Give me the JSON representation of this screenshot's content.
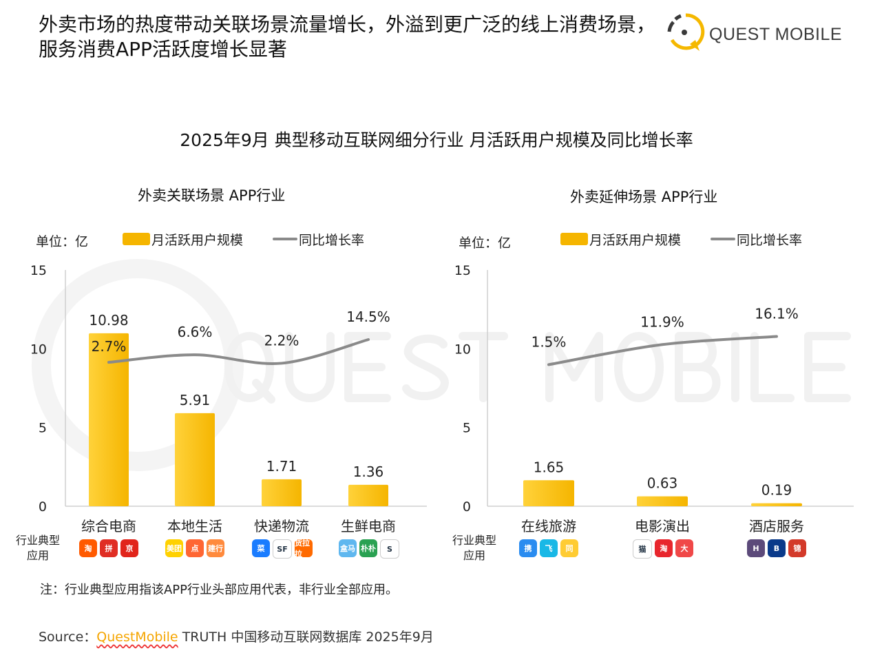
{
  "headline": "外卖市场的热度带动关联场景流量增长，外溢到更广泛的线上消费场景，服务消费APP活跃度增长显著",
  "logo": {
    "text": "QUEST MOBILE",
    "colors": {
      "ring": "#f5b800",
      "mark": "#3a3a3a"
    }
  },
  "watermark": "QUEST MOBILE",
  "colors": {
    "bar": "#f5b500",
    "bar_light": "#ffd23a",
    "line": "#8a8a8a"
  },
  "chart_data": [
    {
      "type": "bar+line",
      "title": "2025年9月 典型移动互联网细分行业 月活跃用户规模及同比增长率",
      "subtitle": "外卖关联场景 APP行业",
      "unit": "单位：亿",
      "legend": [
        "月活跃用户规模",
        "同比增长率"
      ],
      "legend_placement": "top",
      "ylim": [
        0,
        15
      ],
      "yticks": [
        0,
        5,
        10,
        15
      ],
      "categories": [
        "综合电商",
        "本地生活",
        "快递物流",
        "生鲜电商"
      ],
      "series": [
        {
          "name": "月活跃用户规模",
          "type": "bar",
          "values": [
            10.98,
            5.91,
            1.71,
            1.36
          ],
          "labels": [
            "10.98",
            "5.91",
            "1.71",
            "1.36"
          ]
        },
        {
          "name": "同比增长率",
          "type": "line",
          "values": [
            2.7,
            6.6,
            2.2,
            14.5
          ],
          "labels": [
            "2.7%",
            "6.6%",
            "2.2%",
            "14.5%"
          ]
        }
      ],
      "row_label": "行业典型应用",
      "apps": [
        [
          {
            "name": "淘",
            "color": "#ff5a00"
          },
          {
            "name": "拼",
            "color": "#e02e24"
          },
          {
            "name": "京",
            "color": "#e1251b"
          }
        ],
        [
          {
            "name": "美团",
            "color": "#ffd100"
          },
          {
            "name": "点",
            "color": "#ff6633"
          },
          {
            "name": "建行",
            "color": "#ff8a3d"
          }
        ],
        [
          {
            "name": "菜",
            "color": "#1a7cff"
          },
          {
            "name": "SF",
            "color": "#ffffff"
          },
          {
            "name": "货拉拉",
            "color": "#ff6a00"
          }
        ],
        [
          {
            "name": "盒马",
            "color": "#5fb7ef"
          },
          {
            "name": "朴朴",
            "color": "#2aa152"
          },
          {
            "name": "S",
            "color": "#ffffff"
          }
        ]
      ]
    },
    {
      "type": "bar+line",
      "subtitle": "外卖延伸场景 APP行业",
      "unit": "单位：亿",
      "legend": [
        "月活跃用户规模",
        "同比增长率"
      ],
      "legend_placement": "top",
      "ylim": [
        0,
        15
      ],
      "yticks": [
        0,
        5,
        10,
        15
      ],
      "categories": [
        "在线旅游",
        "电影演出",
        "酒店服务"
      ],
      "series": [
        {
          "name": "月活跃用户规模",
          "type": "bar",
          "values": [
            1.65,
            0.63,
            0.19
          ],
          "labels": [
            "1.65",
            "0.63",
            "0.19"
          ]
        },
        {
          "name": "同比增长率",
          "type": "line",
          "values": [
            1.5,
            11.9,
            16.1
          ],
          "labels": [
            "1.5%",
            "11.9%",
            "16.1%"
          ]
        }
      ],
      "row_label": "行业典型应用",
      "apps": [
        [
          {
            "name": "携",
            "color": "#2a8cf0"
          },
          {
            "name": "飞",
            "color": "#19b8e6"
          },
          {
            "name": "同",
            "color": "#ffcc33"
          }
        ],
        [
          {
            "name": "猫",
            "color": "#ffffff"
          },
          {
            "name": "淘",
            "color": "#e8262d"
          },
          {
            "name": "大",
            "color": "#f04848"
          }
        ],
        [
          {
            "name": "H",
            "color": "#5c4a7a"
          },
          {
            "name": "B",
            "color": "#0a3a8a"
          },
          {
            "name": "锦",
            "color": "#d33a2a"
          }
        ]
      ]
    }
  ],
  "note": "注：行业典型应用指该APP行业头部应用代表，非行业全部应用。",
  "source": {
    "prefix": "Source：",
    "brand": "QuestMobile",
    "rest": "TRUTH 中国移动互联网数据库 2025年9月"
  }
}
